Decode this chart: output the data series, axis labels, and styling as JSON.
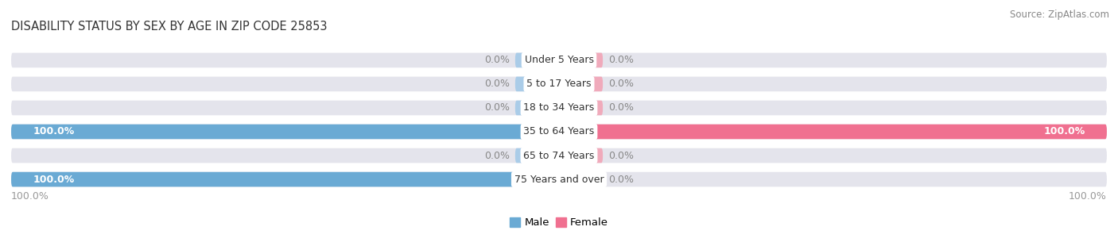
{
  "title": "DISABILITY STATUS BY SEX BY AGE IN ZIP CODE 25853",
  "source": "Source: ZipAtlas.com",
  "age_groups": [
    "Under 5 Years",
    "5 to 17 Years",
    "18 to 34 Years",
    "35 to 64 Years",
    "65 to 74 Years",
    "75 Years and over"
  ],
  "male_values": [
    0.0,
    0.0,
    0.0,
    100.0,
    0.0,
    100.0
  ],
  "female_values": [
    0.0,
    0.0,
    0.0,
    100.0,
    0.0,
    0.0
  ],
  "male_color_full": "#6AAAD4",
  "male_color_zero": "#AACCE8",
  "female_color_full": "#F07090",
  "female_color_zero": "#F0AABB",
  "bar_bg_color": "#E4E4EC",
  "bar_height": 0.62,
  "label_fontsize": 9.0,
  "title_fontsize": 10.5,
  "source_fontsize": 8.5,
  "text_color_on_bar": "#FFFFFF",
  "text_color_outside": "#888888",
  "axis_label_color": "#999999",
  "fig_bg_color": "#FFFFFF",
  "bottom_labels": [
    "100.0%",
    "100.0%"
  ]
}
